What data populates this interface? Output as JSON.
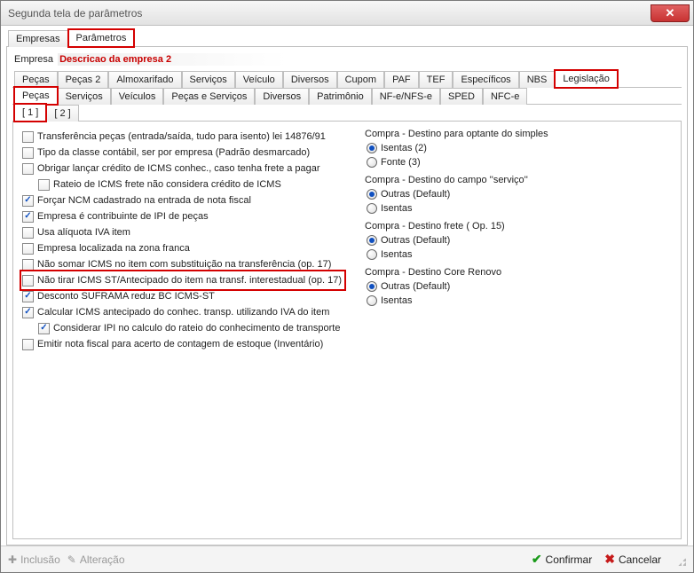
{
  "window": {
    "title": "Segunda tela de parâmetros"
  },
  "tabsLevel1": [
    {
      "label": "Empresas",
      "active": false,
      "highlight": false
    },
    {
      "label": "Parâmetros",
      "active": true,
      "highlight": true
    }
  ],
  "empresa": {
    "label": "Empresa",
    "value": "Descricao da empresa 2"
  },
  "tabsLevel2": [
    {
      "label": "Peças"
    },
    {
      "label": "Peças 2"
    },
    {
      "label": "Almoxarifado"
    },
    {
      "label": "Serviços"
    },
    {
      "label": "Veículo"
    },
    {
      "label": "Diversos"
    },
    {
      "label": "Cupom"
    },
    {
      "label": "PAF"
    },
    {
      "label": "TEF"
    },
    {
      "label": "Específicos"
    },
    {
      "label": "NBS"
    },
    {
      "label": "Legislação",
      "active": true,
      "highlight": true
    }
  ],
  "tabsLevel3": [
    {
      "label": "Peças",
      "active": true,
      "highlight": true
    },
    {
      "label": "Serviços"
    },
    {
      "label": "Veículos"
    },
    {
      "label": "Peças e Serviços"
    },
    {
      "label": "Diversos"
    },
    {
      "label": "Patrimônio"
    },
    {
      "label": "NF-e/NFS-e"
    },
    {
      "label": "SPED"
    },
    {
      "label": "NFC-e"
    }
  ],
  "tabsLevel4": [
    {
      "label": "[ 1 ]",
      "active": true,
      "highlight": true
    },
    {
      "label": "[ 2 ]"
    }
  ],
  "checkboxes": [
    {
      "label": "Transferência peças (entrada/saída, tudo para isento) lei 14876/91",
      "checked": false
    },
    {
      "label": "Tipo da classe contábil, ser por empresa (Padrão desmarcado)",
      "checked": false
    },
    {
      "label": "Obrigar lançar crédito de ICMS conhec., caso tenha frete a pagar",
      "checked": false
    },
    {
      "label": "Rateio de ICMS frete não considera crédito de ICMS",
      "checked": false,
      "indent": 1
    },
    {
      "label": "Forçar NCM cadastrado na entrada de nota fiscal",
      "checked": true
    },
    {
      "label": "Empresa é contribuinte de IPI de peças",
      "checked": true
    },
    {
      "label": "Usa alíquota IVA item",
      "checked": false
    },
    {
      "label": "Empresa localizada na zona franca",
      "checked": false
    },
    {
      "label": "Não somar ICMS no item com substituição na transferência (op. 17)",
      "checked": false
    },
    {
      "label": "Não tirar ICMS ST/Antecipado do item na transf. interestadual (op. 17)",
      "checked": false,
      "highlight": true
    },
    {
      "label": "Desconto SUFRAMA reduz BC ICMS-ST",
      "checked": true
    },
    {
      "label": "Calcular ICMS antecipado do conhec. transp. utilizando IVA do item",
      "checked": true
    },
    {
      "label": "Considerar IPI no calculo do rateio do conhecimento de transporte",
      "checked": true,
      "indent": 1
    },
    {
      "label": "Emitir nota fiscal para acerto de contagem de estoque (Inventário)",
      "checked": false
    }
  ],
  "radioGroups": [
    {
      "title": "Compra - Destino para optante do simples",
      "options": [
        {
          "label": "Isentas (2)",
          "selected": true
        },
        {
          "label": "Fonte (3)",
          "selected": false
        }
      ]
    },
    {
      "title": "Compra - Destino do campo ''serviço''",
      "options": [
        {
          "label": "Outras (Default)",
          "selected": true
        },
        {
          "label": "Isentas",
          "selected": false
        }
      ]
    },
    {
      "title": "Compra - Destino frete ( Op. 15)",
      "options": [
        {
          "label": "Outras (Default)",
          "selected": true
        },
        {
          "label": "Isentas",
          "selected": false
        }
      ]
    },
    {
      "title": "Compra - Destino Core Renovo",
      "options": [
        {
          "label": "Outras (Default)",
          "selected": true
        },
        {
          "label": "Isentas",
          "selected": false
        }
      ]
    }
  ],
  "footer": {
    "inclusao": "Inclusão",
    "alteracao": "Alteração",
    "confirmar": "Confirmar",
    "cancelar": "Cancelar"
  },
  "colors": {
    "highlight": "#d40000",
    "accent": "#c80000",
    "check": "#1050c0",
    "confirm": "#1a9a1a",
    "cancel": "#c61a1a"
  }
}
